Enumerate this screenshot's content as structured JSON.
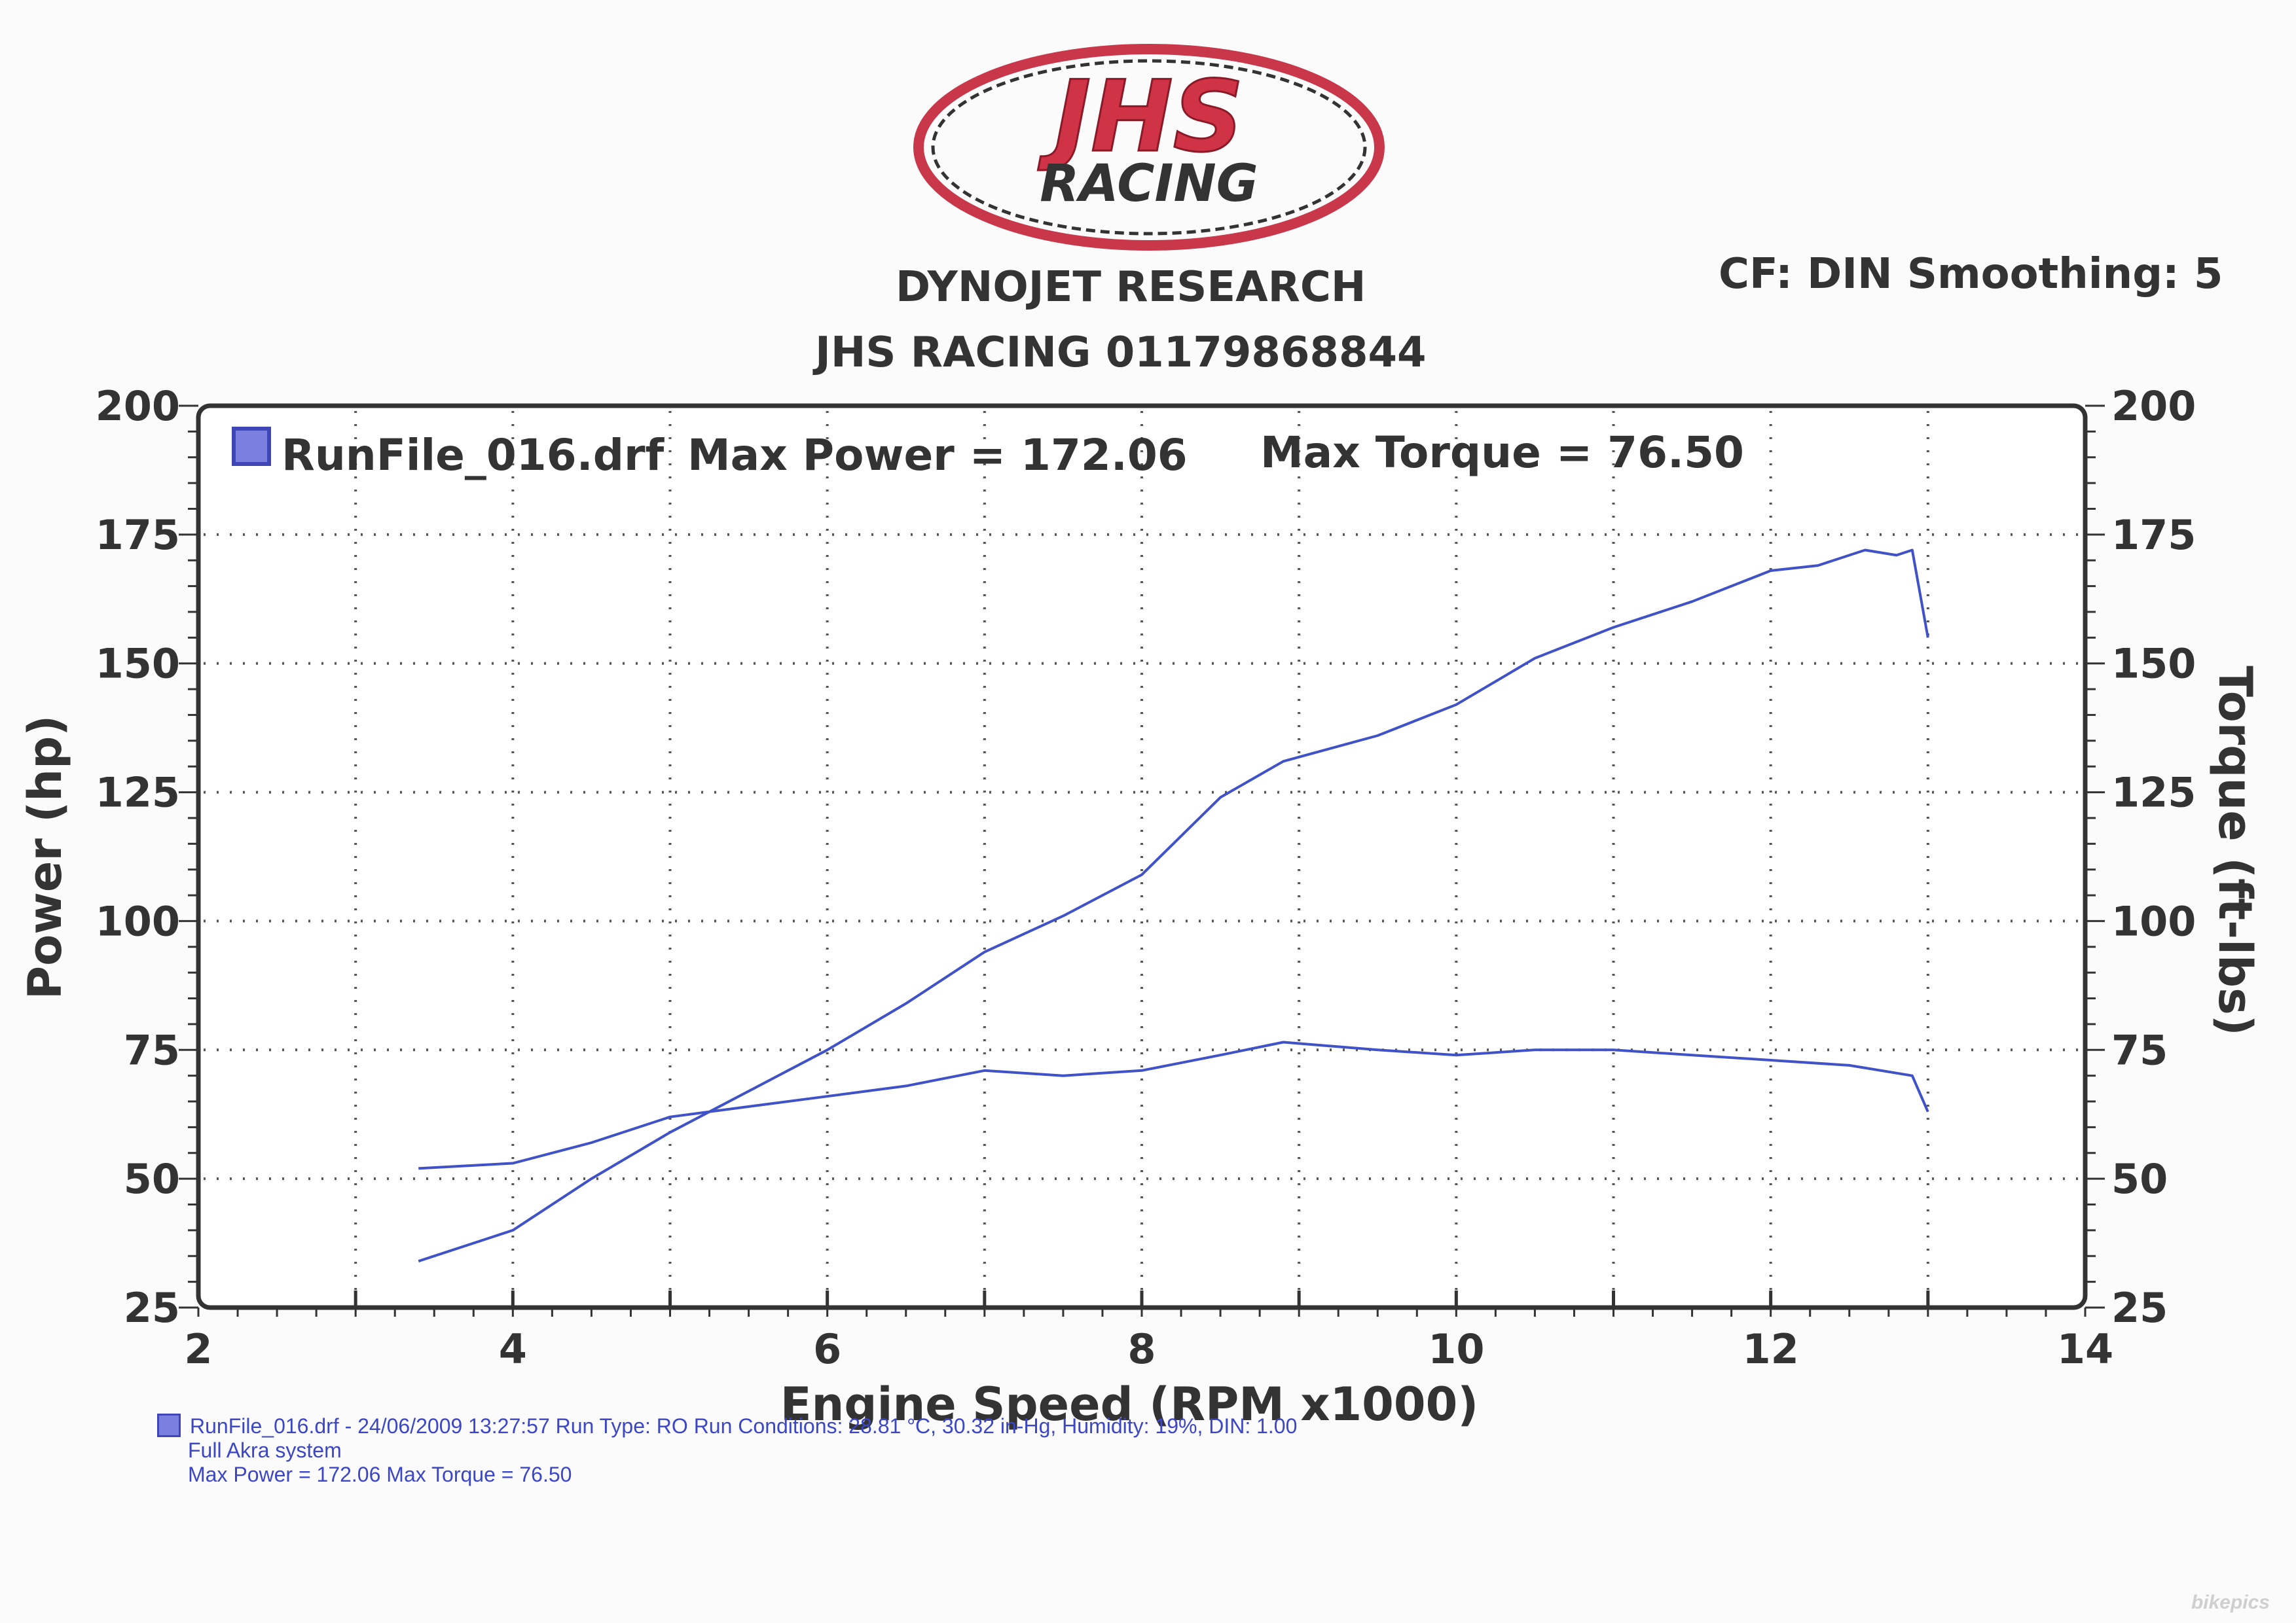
{
  "logo": {
    "line1": "JHS",
    "line2": "RACING"
  },
  "header": {
    "title": "DYNOJET RESEARCH",
    "subtitle": "JHS RACING 01179868844",
    "correction": "CF: DIN  Smoothing: 5"
  },
  "legend_top": {
    "run": "RunFile_016.drf",
    "max_power": "Max Power = 172.06",
    "max_torque": "Max Torque = 76.50"
  },
  "footer": {
    "line1": "RunFile_016.drf - 24/06/2009 13:27:57  Run Type: RO  Run Conditions: 28.81 °C, 30.32 in-Hg,  Humidity:  19%, DIN: 1.00",
    "line2": "Full Akra system",
    "line3": "Max Power = 172.06  Max Torque = 76.50"
  },
  "watermark": "bikepics",
  "colors": {
    "curve": "#3f52c8",
    "frame": "#333333",
    "grid": "#555555"
  },
  "chart_data": {
    "type": "line",
    "title": "",
    "xlabel": "Engine Speed (RPM x1000)",
    "ylabel": "Power (hp)",
    "y2label": "Torque (ft-lbs)",
    "xlim": [
      2,
      14
    ],
    "ylim": [
      25,
      200
    ],
    "y2lim": [
      25,
      200
    ],
    "x_ticks": [
      "2",
      "4",
      "6",
      "8",
      "10",
      "12",
      "14"
    ],
    "y_ticks": [
      "25",
      "50",
      "75",
      "100",
      "125",
      "150",
      "175",
      "200"
    ],
    "y2_ticks": [
      "25",
      "50",
      "75",
      "100",
      "125",
      "150",
      "175",
      "200"
    ],
    "grid": true,
    "series": [
      {
        "name": "Power",
        "x": [
          3.4,
          4.0,
          4.5,
          5.0,
          5.5,
          6.0,
          6.5,
          7.0,
          7.5,
          8.0,
          8.5,
          8.9,
          9.5,
          10.0,
          10.5,
          11.0,
          11.5,
          12.0,
          12.3,
          12.6,
          12.8,
          12.9,
          13.0
        ],
        "y": [
          34,
          40,
          50,
          59,
          67,
          75,
          84,
          94,
          101,
          109,
          124,
          131,
          136,
          142,
          151,
          157,
          162,
          168,
          169,
          172,
          171,
          172,
          155
        ]
      },
      {
        "name": "Torque",
        "x": [
          3.4,
          4.0,
          4.5,
          5.0,
          5.5,
          6.0,
          6.5,
          7.0,
          7.5,
          8.0,
          8.5,
          8.9,
          9.5,
          10.0,
          10.5,
          11.0,
          11.5,
          12.0,
          12.5,
          12.9,
          13.0
        ],
        "y": [
          52,
          53,
          57,
          62,
          64,
          66,
          68,
          71,
          70,
          71,
          74,
          76.5,
          75,
          74,
          75,
          75,
          74,
          73,
          72,
          70,
          63
        ]
      }
    ]
  }
}
